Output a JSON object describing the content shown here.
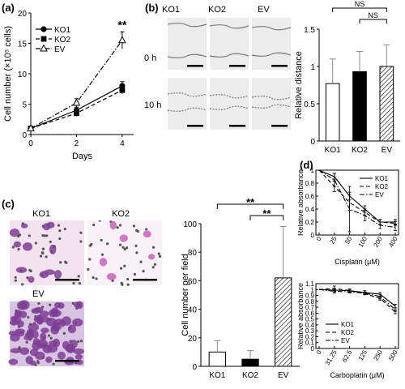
{
  "panels": {
    "a": {
      "letter": "(a)",
      "chart_data": {
        "type": "line",
        "x": [
          0,
          2,
          4
        ],
        "xlabel": "Days",
        "ylabel": "Cell number (×10⁵ cells)",
        "ylim": [
          0,
          20
        ],
        "yticks": [
          0,
          5,
          10,
          15,
          20
        ],
        "xticks": [
          0,
          2,
          4
        ],
        "series": [
          {
            "name": "KO1",
            "values": [
              1,
              4,
              8
            ],
            "errors": [
              0.2,
              0.5,
              0.7
            ],
            "marker": "circle-filled",
            "dash": "solid"
          },
          {
            "name": "KO2",
            "values": [
              1,
              3.5,
              7.3
            ],
            "errors": [
              0.2,
              0.5,
              0.6
            ],
            "marker": "square-filled",
            "dash": "dash"
          },
          {
            "name": "EV",
            "values": [
              1,
              5.2,
              15.5
            ],
            "errors": [
              0.2,
              0.7,
              1.4
            ],
            "marker": "triangle-open",
            "dash": "dashdot"
          }
        ],
        "annotations": [
          "**"
        ],
        "legend": "top-left"
      }
    },
    "b": {
      "letter": "(b)",
      "columns": [
        "KO1",
        "KO2",
        "EV"
      ],
      "rows": [
        "0 h",
        "10 h"
      ],
      "chart_data": {
        "type": "bar",
        "categories": [
          "KO1",
          "KO2",
          "EV"
        ],
        "values": [
          0.77,
          0.93,
          1.0
        ],
        "errors": [
          0.33,
          0.27,
          0.29
        ],
        "fills": [
          "white",
          "black",
          "hatched"
        ],
        "ylabel": "Relative distance",
        "ylim": [
          0,
          1.5
        ],
        "yticks": [
          0,
          0.5,
          1,
          1.5
        ],
        "yticklabels": [
          "0",
          "0.5",
          "1",
          "1.5"
        ],
        "brackets": [
          {
            "from": "KO1",
            "to": "EV",
            "label": "NS"
          },
          {
            "from": "KO2",
            "to": "EV",
            "label": "NS"
          }
        ]
      }
    },
    "c": {
      "letter": "(c)",
      "images": [
        "KO1",
        "KO2",
        "EV"
      ],
      "chart_data": {
        "type": "bar",
        "categories": [
          "KO1",
          "KO2",
          "EV"
        ],
        "values": [
          10,
          5,
          62
        ],
        "errors": [
          8,
          6,
          36
        ],
        "fills": [
          "white",
          "black",
          "hatched"
        ],
        "ylabel": "Cell number per field",
        "ylim": [
          0,
          100
        ],
        "yticks": [
          0,
          20,
          40,
          60,
          80,
          100
        ],
        "brackets": [
          {
            "from": "KO1",
            "to": "EV",
            "label": "**"
          },
          {
            "from": "KO2",
            "to": "EV",
            "label": "**"
          }
        ]
      }
    },
    "d": {
      "letter": "(d)",
      "chart_data": [
        {
          "type": "line",
          "categories": [
            "0",
            "25",
            "50",
            "100",
            "200",
            "400"
          ],
          "xlabel": "Cisplatin (μM)",
          "ylabel": "Relative absorbance",
          "ylim": [
            0,
            1
          ],
          "yticks": [
            0,
            0.2,
            0.4,
            0.6,
            0.8,
            1
          ],
          "yticklabels": [
            "0",
            "0.2",
            "0.4",
            "0.6",
            "0.8",
            "1"
          ],
          "series": [
            {
              "name": "KO1",
              "values": [
                1,
                0.9,
                0.6,
                0.4,
                0.2,
                0.2
              ],
              "errors": [
                0,
                0.05,
                0.06,
                0.05,
                0.04,
                0.04
              ],
              "dash": "solid"
            },
            {
              "name": "KO2",
              "values": [
                1,
                0.75,
                0.5,
                0.35,
                0.2,
                0.18
              ],
              "errors": [
                0,
                0.08,
                0.12,
                0.05,
                0.04,
                0.03
              ],
              "dash": "dash"
            },
            {
              "name": "EV",
              "values": [
                1,
                0.85,
                0.4,
                0.3,
                0.15,
                0.12
              ],
              "errors": [
                0,
                0.1,
                0.35,
                0.08,
                0.05,
                0.05
              ],
              "dash": "dashdot"
            }
          ],
          "legend": "top-right"
        },
        {
          "type": "line",
          "categories": [
            "0",
            "31.25",
            "62.5",
            "125",
            "250",
            "500"
          ],
          "xlabel": "Carboplatin (μM)",
          "ylabel": "Relative absorbance",
          "ylim": [
            0,
            1.1
          ],
          "yticks": [
            0,
            0.1,
            0.2,
            0.3,
            0.4,
            0.5,
            0.6,
            0.7,
            0.8,
            0.9,
            1,
            1.1
          ],
          "yticklabels": [
            "0",
            "0.1",
            "0.2",
            "0.3",
            "0.4",
            "0.5",
            "0.6",
            "0.7",
            "0.8",
            "0.9",
            "1",
            "1.1"
          ],
          "series": [
            {
              "name": "KO1",
              "values": [
                1,
                0.99,
                0.98,
                0.95,
                0.92,
                0.72
              ],
              "errors": [
                0,
                0.03,
                0.02,
                0.03,
                0.03,
                0.03
              ],
              "dash": "solid"
            },
            {
              "name": "KO2",
              "values": [
                1,
                1.02,
                0.98,
                0.93,
                0.85,
                0.62
              ],
              "errors": [
                0,
                0.04,
                0.03,
                0.02,
                0.03,
                0.03
              ],
              "dash": "dash"
            },
            {
              "name": "EV",
              "values": [
                1,
                0.97,
                0.96,
                0.94,
                0.88,
                0.66
              ],
              "errors": [
                0,
                0.03,
                0.02,
                0.02,
                0.04,
                0.03
              ],
              "dash": "dashdot"
            }
          ],
          "legend": "bottom-left"
        }
      ]
    }
  },
  "colors": {
    "stain_light": "#f3e3ee",
    "stain_dark": "#7d3e93",
    "stain_pink": "#c960b8",
    "pore": "#555555",
    "scratch_bg": "#ececec",
    "scratch_line": "#7a7a7a"
  }
}
